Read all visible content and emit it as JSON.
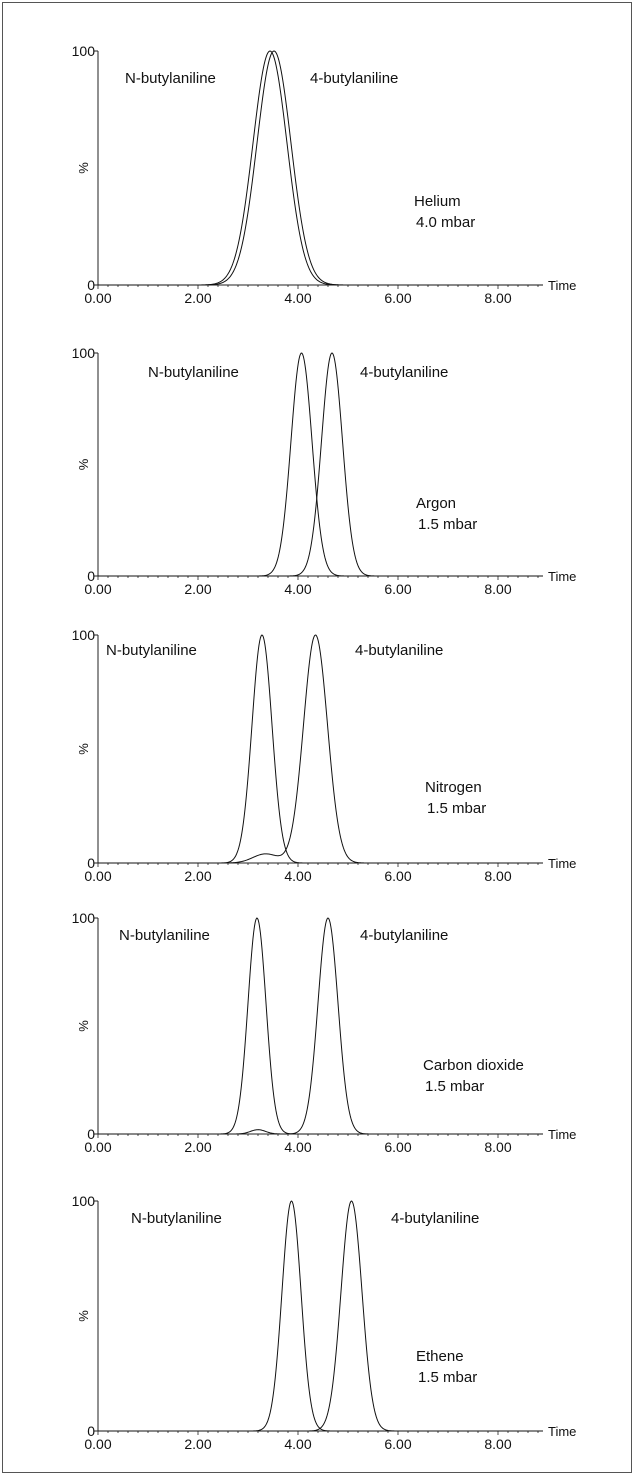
{
  "chart_data": [
    {
      "type": "line",
      "gas": "Helium",
      "pressure": "4.0 mbar",
      "ylabel": "%",
      "xlabel": "Time",
      "xlim": [
        0,
        8.9
      ],
      "ylim": [
        0,
        100
      ],
      "xticks": [
        "0.00",
        "2.00",
        "4.00",
        "6.00",
        "8.00"
      ],
      "yticks": [
        "0",
        "100"
      ],
      "series": [
        {
          "name": "N-butylaniline",
          "peaks": [
            {
              "center": 3.44,
              "height": 100,
              "width": 0.34
            }
          ]
        },
        {
          "name": "4-butylaniline",
          "peaks": [
            {
              "center": 3.52,
              "height": 100,
              "width": 0.34
            }
          ]
        }
      ]
    },
    {
      "type": "line",
      "gas": "Argon",
      "pressure": "1.5 mbar",
      "ylabel": "%",
      "xlabel": "Time",
      "xlim": [
        0,
        8.9
      ],
      "ylim": [
        0,
        100
      ],
      "xticks": [
        "0.00",
        "2.00",
        "4.00",
        "6.00",
        "8.00"
      ],
      "yticks": [
        "0",
        "100"
      ],
      "series": [
        {
          "name": "N-butylaniline",
          "peaks": [
            {
              "center": 4.07,
              "height": 100,
              "width": 0.21
            }
          ]
        },
        {
          "name": "4-butylaniline",
          "peaks": [
            {
              "center": 4.68,
              "height": 100,
              "width": 0.21
            }
          ]
        }
      ]
    },
    {
      "type": "line",
      "gas": "Nitrogen",
      "pressure": "1.5 mbar",
      "ylabel": "%",
      "xlabel": "Time",
      "xlim": [
        0,
        8.9
      ],
      "ylim": [
        0,
        100
      ],
      "xticks": [
        "0.00",
        "2.00",
        "4.00",
        "6.00",
        "8.00"
      ],
      "yticks": [
        "0",
        "100"
      ],
      "series": [
        {
          "name": "N-butylaniline",
          "peaks": [
            {
              "center": 3.28,
              "height": 100,
              "width": 0.2
            }
          ]
        },
        {
          "name": "4-butylaniline",
          "peaks": [
            {
              "center": 4.35,
              "height": 100,
              "width": 0.24
            },
            {
              "center": 3.35,
              "height": 4,
              "width": 0.25
            }
          ]
        }
      ]
    },
    {
      "type": "line",
      "gas": "Carbon dioxide",
      "pressure": "1.5 mbar",
      "ylabel": "%",
      "xlabel": "Time",
      "xlim": [
        0,
        8.9
      ],
      "ylim": [
        0,
        100
      ],
      "xticks": [
        "0.00",
        "2.00",
        "4.00",
        "6.00",
        "8.00"
      ],
      "yticks": [
        "0",
        "100"
      ],
      "series": [
        {
          "name": "N-butylaniline",
          "peaks": [
            {
              "center": 3.18,
              "height": 100,
              "width": 0.18
            }
          ]
        },
        {
          "name": "4-butylaniline",
          "peaks": [
            {
              "center": 4.6,
              "height": 100,
              "width": 0.2
            },
            {
              "center": 3.2,
              "height": 2,
              "width": 0.15
            }
          ]
        }
      ]
    },
    {
      "type": "line",
      "gas": "Ethene",
      "pressure": "1.5 mbar",
      "ylabel": "%",
      "xlabel": "Time",
      "xlim": [
        0,
        8.9
      ],
      "ylim": [
        0,
        100
      ],
      "xticks": [
        "0.00",
        "2.00",
        "4.00",
        "6.00",
        "8.00"
      ],
      "yticks": [
        "0",
        "100"
      ],
      "series": [
        {
          "name": "N-butylaniline",
          "peaks": [
            {
              "center": 3.87,
              "height": 100,
              "width": 0.19
            }
          ]
        },
        {
          "name": "4-butylaniline",
          "peaks": [
            {
              "center": 5.07,
              "height": 100,
              "width": 0.21
            }
          ]
        }
      ]
    }
  ]
}
